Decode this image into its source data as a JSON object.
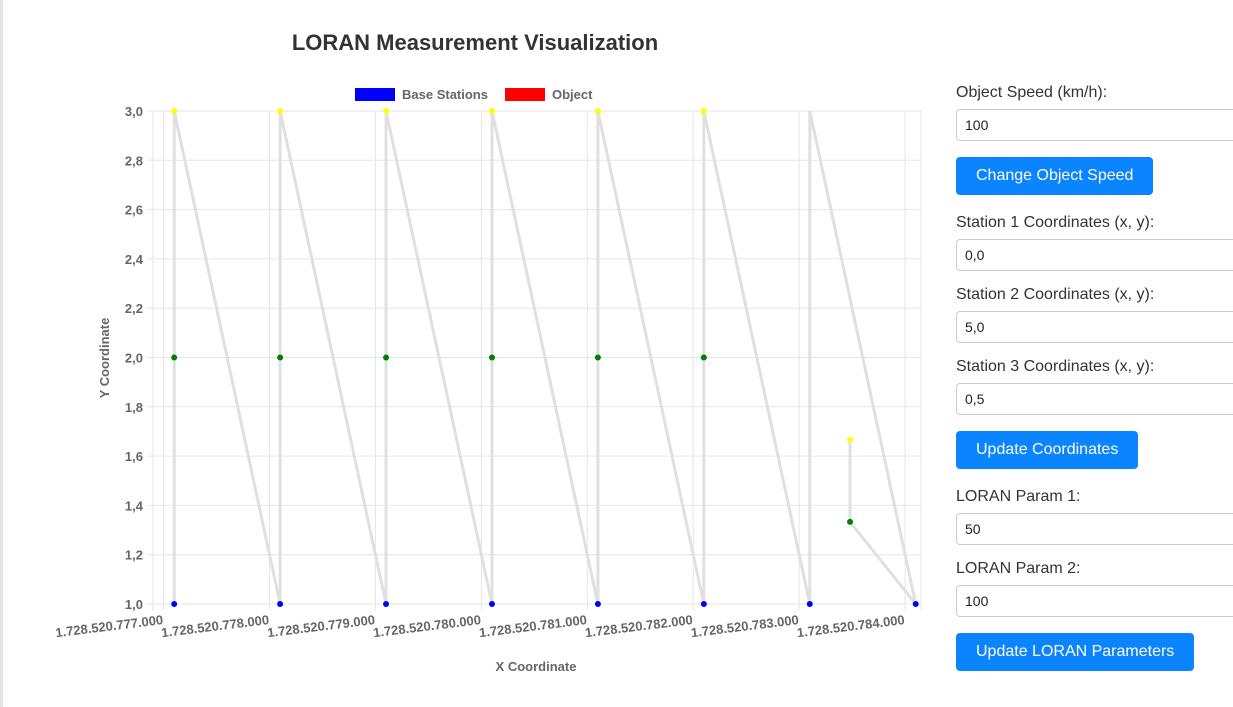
{
  "title": "LORAN Measurement Visualization",
  "controls": {
    "speed_label": "Object Speed (km/h):",
    "speed_value": "100",
    "change_speed_button": "Change Object Speed",
    "station1_label": "Station 1 Coordinates (x, y):",
    "station1_value": "0,0",
    "station2_label": "Station 2 Coordinates (x, y):",
    "station2_value": "5,0",
    "station3_label": "Station 3 Coordinates (x, y):",
    "station3_value": "0,5",
    "update_coords_button": "Update Coordinates",
    "param1_label": "LORAN Param 1:",
    "param1_value": "50",
    "param2_label": "LORAN Param 2:",
    "param2_value": "100",
    "update_params_button": "Update LORAN Parameters"
  },
  "chart_data": {
    "type": "scatter",
    "xlabel": "X Coordinate",
    "ylabel": "Y Coordinate",
    "xlim": [
      1728520776900,
      1728520784150
    ],
    "ylim": [
      1.0,
      3.0
    ],
    "x_ticks": [
      "1.728.520.777.000",
      "1.728.520.778.000",
      "1.728.520.779.000",
      "1.728.520.780.000",
      "1.728.520.781.000",
      "1.728.520.782.000",
      "1.728.520.783.000",
      "1.728.520.784.000"
    ],
    "x_tick_values": [
      1728520777000,
      1728520778000,
      1728520779000,
      1728520780000,
      1728520781000,
      1728520782000,
      1728520783000,
      1728520784000
    ],
    "y_ticks": [
      "1,0",
      "1,2",
      "1,4",
      "1,6",
      "1,8",
      "2,0",
      "2,2",
      "2,4",
      "2,6",
      "2,8",
      "3,0"
    ],
    "y_tick_values": [
      1.0,
      1.2,
      1.4,
      1.6,
      1.8,
      2.0,
      2.2,
      2.4,
      2.6,
      2.8,
      3.0
    ],
    "legend": [
      {
        "name": "Base Stations",
        "color": "#0000ff"
      },
      {
        "name": "Object",
        "color": "#ff0000"
      }
    ],
    "legend_position": "top",
    "grid": true,
    "line_color": "#e0e0e0",
    "point_colors": {
      "1": "#0000ff",
      "2": "#008000",
      "3": "#ffff00"
    },
    "points": [
      [
        1728520777100,
        1.0
      ],
      [
        1728520777100,
        2.0
      ],
      [
        1728520777100,
        3.0
      ],
      [
        1728520778100,
        1.0
      ],
      [
        1728520778100,
        2.0
      ],
      [
        1728520778100,
        3.0
      ],
      [
        1728520779100,
        1.0
      ],
      [
        1728520779100,
        2.0
      ],
      [
        1728520779100,
        3.0
      ],
      [
        1728520780100,
        1.0
      ],
      [
        1728520780100,
        2.0
      ],
      [
        1728520780100,
        3.0
      ],
      [
        1728520781100,
        1.0
      ],
      [
        1728520781100,
        2.0
      ],
      [
        1728520781100,
        3.0
      ],
      [
        1728520782100,
        1.0
      ],
      [
        1728520782100,
        2.0
      ],
      [
        1728520782100,
        3.0
      ],
      [
        1728520783100,
        1.0
      ],
      [
        1728520783480,
        1.333
      ],
      [
        1728520783480,
        1.667
      ],
      [
        1728520784100,
        1.0
      ]
    ],
    "path": [
      [
        1728520777100,
        1.0
      ],
      [
        1728520777100,
        2.0
      ],
      [
        1728520777100,
        3.0
      ],
      [
        1728520778100,
        1.0
      ],
      [
        1728520778100,
        2.0
      ],
      [
        1728520778100,
        3.0
      ],
      [
        1728520779100,
        1.0
      ],
      [
        1728520779100,
        2.0
      ],
      [
        1728520779100,
        3.0
      ],
      [
        1728520780100,
        1.0
      ],
      [
        1728520780100,
        2.0
      ],
      [
        1728520780100,
        3.0
      ],
      [
        1728520781100,
        1.0
      ],
      [
        1728520781100,
        2.0
      ],
      [
        1728520781100,
        3.0
      ],
      [
        1728520782100,
        1.0
      ],
      [
        1728520782100,
        2.0
      ],
      [
        1728520782100,
        3.0
      ],
      [
        1728520783100,
        1.0
      ],
      [
        1728520783100,
        2.0
      ],
      [
        1728520783100,
        3.0
      ],
      [
        1728520784100,
        1.0
      ],
      [
        1728520783480,
        1.333
      ],
      [
        1728520783480,
        1.667
      ]
    ]
  }
}
